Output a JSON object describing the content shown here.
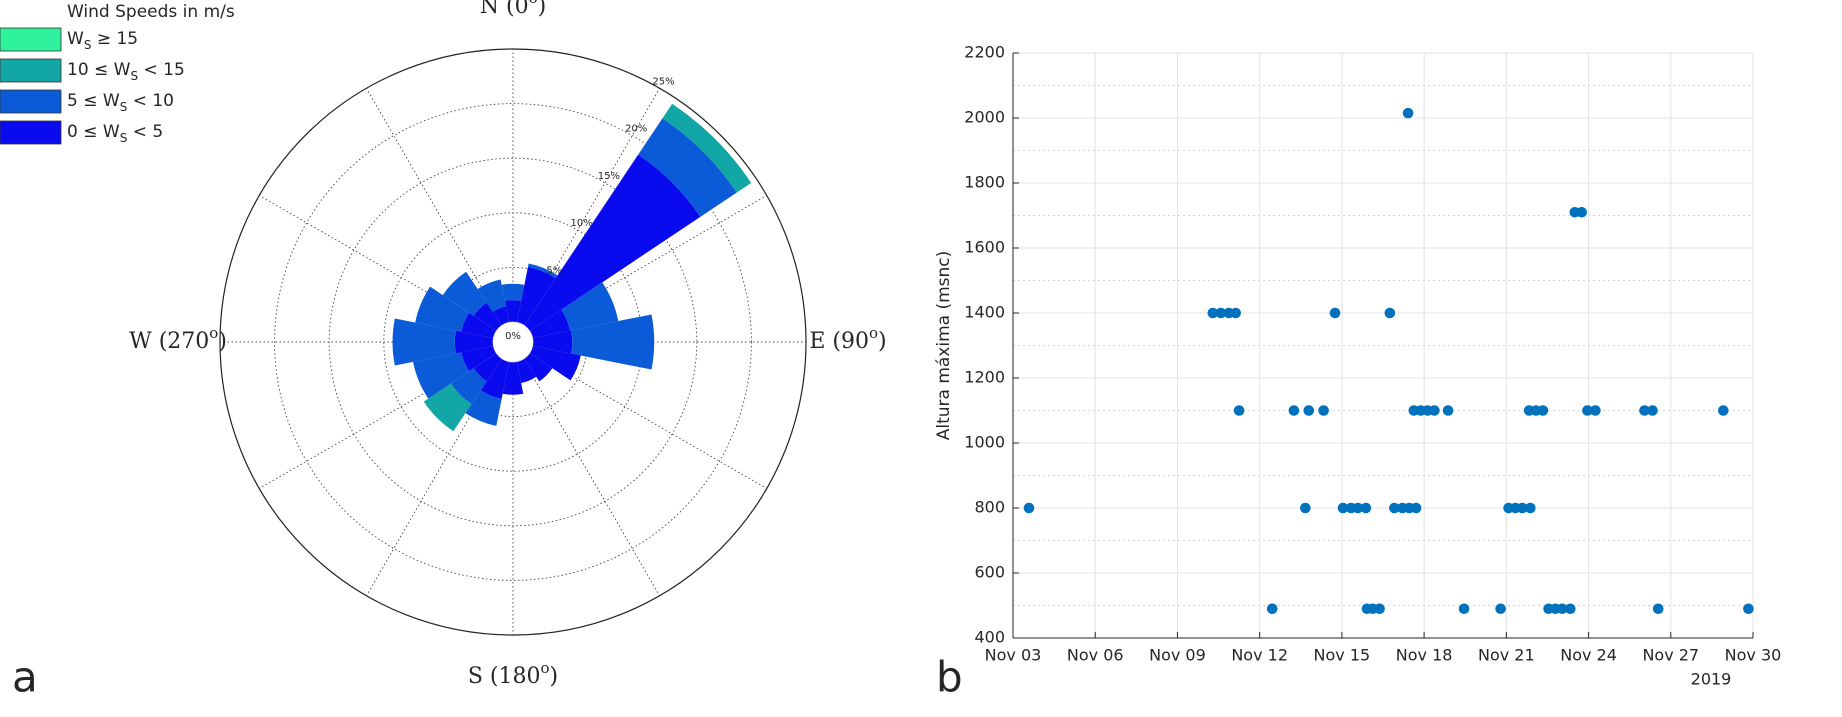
{
  "chart_data": [
    {
      "type": "windrose",
      "panel_label": "a",
      "legend_title": "Wind Speeds in m/s",
      "angles": [
        0,
        22.5,
        45,
        67.5,
        90,
        112.5,
        135,
        157.5,
        180,
        202.5,
        225,
        247.5,
        270,
        292.5,
        315,
        337.5
      ],
      "series": [
        {
          "name": {
            "before": "0 ≤ W",
            "sub": "S",
            "after": " < 5"
          },
          "color": "#0a0aee",
          "values": [
            2.0,
            5.2,
            18.8,
            3.5,
            3.6,
            4.5,
            2.5,
            2.0,
            3.0,
            3.5,
            2.5,
            3.0,
            3.5,
            3.0,
            2.5,
            1.5
          ]
        },
        {
          "name": {
            "before": "5 ≤ W",
            "sub": "S",
            "after": " < 10"
          },
          "color": "#0b5ad8",
          "values": [
            1.5,
            0.3,
            4.0,
            4.5,
            7.5,
            0,
            0,
            0,
            0,
            2.5,
            2.5,
            4.5,
            5.7,
            4.3,
            3.4,
            2.5
          ]
        },
        {
          "name": {
            "before": "10 ≤ W",
            "sub": "S",
            "after": " < 15"
          },
          "color": "#12a6a6",
          "values": [
            0,
            0,
            1.6,
            0,
            0,
            0,
            0,
            0,
            0,
            0,
            3.0,
            0,
            0,
            0,
            0,
            0
          ]
        },
        {
          "name": {
            "before": "W",
            "sub": "S",
            "after": " ≥ 15"
          },
          "color": "#2ef39c",
          "values": [
            0,
            0,
            0,
            0,
            0,
            0,
            0,
            0,
            0,
            0,
            0,
            0,
            0,
            0,
            0,
            0
          ]
        }
      ],
      "rlim": [
        0,
        25
      ],
      "rticks": [
        {
          "value": 0,
          "label": "0%"
        },
        {
          "value": 5,
          "label": "5%"
        },
        {
          "value": 10,
          "label": "10%"
        },
        {
          "value": 15,
          "label": "15%"
        },
        {
          "value": 20,
          "label": "20%"
        },
        {
          "value": 25,
          "label": "25%"
        }
      ],
      "theta_grid": [
        0,
        30,
        60,
        90,
        120,
        150,
        180,
        210,
        240,
        270,
        300,
        330
      ],
      "theta_ticks": [
        {
          "value": 0,
          "text": "N (0",
          "sup": "o",
          "end": ")"
        },
        {
          "value": 90,
          "text": "E (90",
          "sup": "o",
          "end": ")"
        },
        {
          "value": 180,
          "text": "S (180",
          "sup": "o",
          "end": ")"
        },
        {
          "value": 270,
          "text": "W (270",
          "sup": "o",
          "end": ")"
        }
      ]
    },
    {
      "type": "scatter",
      "panel_label": "b",
      "ylabel": "Altura máxima (msnc)",
      "x_secondary_label": "2019",
      "color": "#0072bd",
      "x": [
        "2019-11-03 14:00",
        "2019-11-10 07:00",
        "2019-11-10 14:00",
        "2019-11-10 21:00",
        "2019-11-11 03:00",
        "2019-11-11 06:00",
        "2019-11-12 11:00",
        "2019-11-13 06:00",
        "2019-11-13 16:00",
        "2019-11-13 19:00",
        "2019-11-14 08:00",
        "2019-11-14 18:00",
        "2019-11-15 01:00",
        "2019-11-15 08:00",
        "2019-11-15 14:00",
        "2019-11-15 21:00",
        "2019-11-15 22:00",
        "2019-11-16 03:00",
        "2019-11-16 09:00",
        "2019-11-16 18:00",
        "2019-11-16 22:00",
        "2019-11-17 05:00",
        "2019-11-17 11:00",
        "2019-11-17 17:00",
        "2019-11-17 10:00",
        "2019-11-17 15:00",
        "2019-11-17 21:00",
        "2019-11-18 03:00",
        "2019-11-18 09:00",
        "2019-11-18 21:00",
        "2019-11-19 11:00",
        "2019-11-20 19:00",
        "2019-11-21 02:00",
        "2019-11-21 08:00",
        "2019-11-21 14:00",
        "2019-11-21 21:00",
        "2019-11-21 20:00",
        "2019-11-22 02:00",
        "2019-11-22 08:00",
        "2019-11-22 13:00",
        "2019-11-22 19:00",
        "2019-11-23 01:00",
        "2019-11-23 08:00",
        "2019-11-23 12:00",
        "2019-11-23 18:00",
        "2019-11-23 23:00",
        "2019-11-24 06:00",
        "2019-11-26 01:00",
        "2019-11-26 08:00",
        "2019-11-26 13:00",
        "2019-11-28 22:00",
        "2019-11-29 20:00"
      ],
      "values": [
        800,
        1400,
        1400,
        1400,
        1400,
        1100,
        490,
        1100,
        800,
        1100,
        1100,
        1400,
        800,
        800,
        800,
        800,
        490,
        490,
        490,
        1400,
        800,
        800,
        800,
        800,
        2015,
        1100,
        1100,
        1100,
        1100,
        1100,
        490,
        490,
        800,
        800,
        800,
        800,
        1100,
        1100,
        1100,
        490,
        490,
        490,
        490,
        1710,
        1710,
        1100,
        1100,
        1100,
        1100,
        490,
        1100,
        490
      ],
      "xlim": [
        "2019-11-03",
        "2019-11-30"
      ],
      "xticks": [
        {
          "value": "2019-11-03",
          "label": "Nov 03"
        },
        {
          "value": "2019-11-06",
          "label": "Nov 06"
        },
        {
          "value": "2019-11-09",
          "label": "Nov 09"
        },
        {
          "value": "2019-11-12",
          "label": "Nov 12"
        },
        {
          "value": "2019-11-15",
          "label": "Nov 15"
        },
        {
          "value": "2019-11-18",
          "label": "Nov 18"
        },
        {
          "value": "2019-11-21",
          "label": "Nov 21"
        },
        {
          "value": "2019-11-24",
          "label": "Nov 24"
        },
        {
          "value": "2019-11-27",
          "label": "Nov 27"
        },
        {
          "value": "2019-11-30",
          "label": "Nov 30"
        }
      ],
      "ylim": [
        400,
        2200
      ],
      "yticks": [
        400,
        600,
        800,
        1000,
        1200,
        1400,
        1600,
        1800,
        2000,
        2200
      ],
      "yminorticks": [
        500,
        700,
        900,
        1100,
        1300,
        1500,
        1700,
        1900,
        2100
      ],
      "grid": true
    }
  ]
}
